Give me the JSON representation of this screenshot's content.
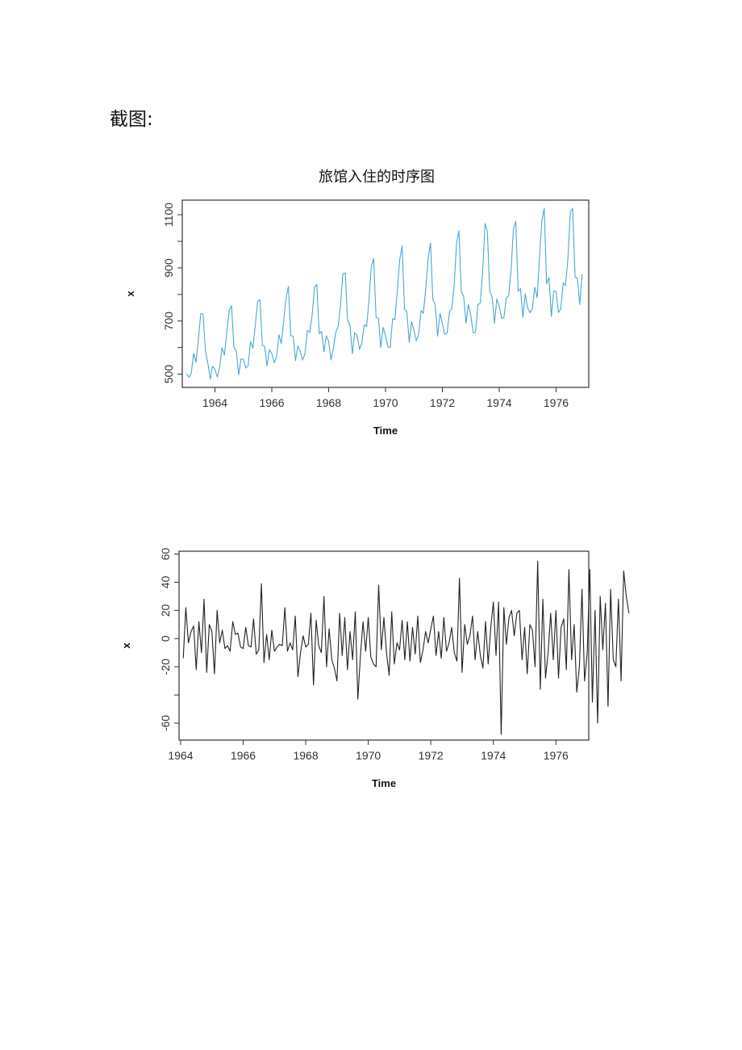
{
  "page": {
    "heading": "截图:"
  },
  "chart_data": [
    {
      "type": "line",
      "title": "旅馆入住的时序图",
      "xlabel": "Time",
      "ylabel": "x",
      "xlim": [
        1962.85,
        1977.15
      ],
      "ylim": [
        450,
        1155
      ],
      "xticks": [
        1964,
        1966,
        1968,
        1970,
        1972,
        1974,
        1976
      ],
      "yticks": [
        500,
        700,
        900,
        1100
      ],
      "grid": false,
      "line_color": "#4ba6d3",
      "series": [
        {
          "start": 1963.0,
          "frequency": 12,
          "values": [
            501,
            488,
            504,
            578,
            545,
            632,
            728,
            725,
            585,
            542,
            480,
            530,
            518,
            489,
            528,
            599,
            572,
            659,
            739,
            758,
            602,
            587,
            497,
            558,
            555,
            523,
            532,
            623,
            598,
            683,
            774,
            780,
            609,
            604,
            531,
            592,
            578,
            543,
            565,
            648,
            615,
            697,
            785,
            830,
            645,
            643,
            551,
            606,
            585,
            553,
            576,
            665,
            656,
            720,
            826,
            838,
            652,
            661,
            584,
            644,
            623,
            553,
            599,
            657,
            680,
            759,
            878,
            881,
            705,
            684,
            577,
            656,
            645,
            593,
            617,
            686,
            679,
            773,
            906,
            934,
            713,
            710,
            600,
            676,
            645,
            602,
            601,
            709,
            706,
            817,
            930,
            983,
            745,
            735,
            620,
            698,
            665,
            626,
            649,
            740,
            729,
            824,
            937,
            994,
            781,
            759,
            643,
            728,
            691,
            649,
            656,
            735,
            748,
            837,
            995,
            1040,
            809,
            793,
            692,
            763,
            723,
            655,
            658,
            761,
            768,
            885,
            1067,
            1038,
            812,
            790,
            692,
            782,
            758,
            709,
            715,
            788,
            794,
            893,
            1046,
            1075,
            812,
            822,
            714,
            802,
            748,
            731,
            748,
            827,
            788,
            937,
            1076,
            1125,
            840,
            864,
            717,
            813,
            811,
            732,
            745,
            844,
            833,
            935,
            1110,
            1124,
            867,
            860,
            762,
            877
          ]
        }
      ]
    },
    {
      "type": "line",
      "title": "",
      "xlabel": "Time",
      "ylabel": "x",
      "xlim": [
        1963.95,
        1977.05
      ],
      "ylim": [
        -72,
        62
      ],
      "xticks": [
        1964,
        1966,
        1968,
        1970,
        1972,
        1974,
        1976
      ],
      "yticks": [
        -60,
        -20,
        0,
        20,
        40,
        60
      ],
      "grid": false,
      "line_color": "#222222",
      "series": [
        {
          "start": 1964.0833,
          "frequency": 12,
          "values": [
            -14,
            22,
            -3,
            5,
            9,
            -22,
            12,
            -10,
            28,
            -24,
            10,
            5,
            -25,
            20,
            -3,
            6,
            -7,
            -5,
            -9,
            12,
            3,
            4,
            -6,
            -7,
            8,
            -5,
            -6,
            14,
            -11,
            -8,
            39,
            -17,
            3,
            -15,
            6,
            -9,
            -6,
            -4,
            -5,
            22,
            -9,
            -3,
            -8,
            16,
            -27,
            -10,
            2,
            -6,
            -4,
            18,
            -33,
            13,
            -5,
            -10,
            30,
            -20,
            7,
            -15,
            -21,
            -30,
            18,
            -12,
            15,
            -22,
            5,
            -15,
            19,
            -43,
            -12,
            12,
            -9,
            15,
            -13,
            -18,
            -20,
            38,
            -8,
            15,
            -10,
            -26,
            19,
            -18,
            -3,
            -8,
            13,
            -15,
            12,
            -16,
            8,
            -11,
            16,
            -17,
            -8,
            5,
            -3,
            7,
            16,
            -12,
            5,
            -14,
            15,
            -9,
            -3,
            8,
            -10,
            -16,
            43,
            -24,
            10,
            -4,
            2,
            16,
            -15,
            5,
            -12,
            -21,
            12,
            -18,
            8,
            26,
            -12,
            26,
            -68,
            22,
            -4,
            15,
            20,
            2,
            18,
            20,
            -15,
            8,
            -25,
            10,
            6,
            -20,
            55,
            -36,
            28,
            -28,
            -10,
            18,
            -15,
            20,
            -28,
            8,
            14,
            -22,
            49,
            -15,
            10,
            -38,
            -20,
            35,
            -30,
            -10,
            49,
            -45,
            20,
            -60,
            30,
            -8,
            25,
            -48,
            35,
            -15,
            -20,
            28,
            -30,
            48,
            30,
            18
          ]
        }
      ]
    }
  ]
}
